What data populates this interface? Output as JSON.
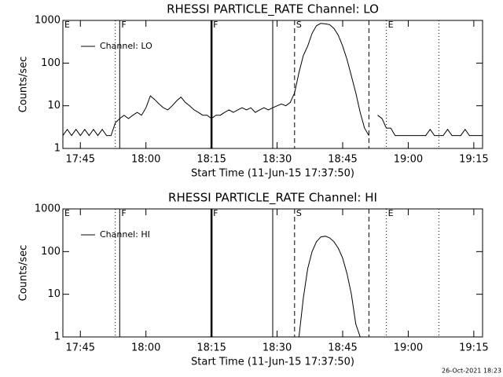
{
  "chart_data": [
    {
      "type": "line",
      "title": "RHESSI PARTICLE_RATE Channel: LO",
      "xlabel": "Start Time (11-Jun-15 17:37:50)",
      "ylabel": "Counts/sec",
      "x": [
        "17:41",
        "17:42",
        "17:43",
        "17:44",
        "17:45",
        "17:46",
        "17:47",
        "17:48",
        "17:49",
        "17:50",
        "17:51",
        "17:52",
        "17:53",
        "17:54",
        "17:55",
        "17:56",
        "17:57",
        "17:58",
        "17:59",
        "18:00",
        "18:01",
        "18:02",
        "18:03",
        "18:04",
        "18:05",
        "18:06",
        "18:07",
        "18:08",
        "18:09",
        "18:10",
        "18:11",
        "18:12",
        "18:13",
        "18:14",
        "18:15",
        "18:16",
        "18:17",
        "18:18",
        "18:19",
        "18:20",
        "18:21",
        "18:22",
        "18:23",
        "18:24",
        "18:25",
        "18:26",
        "18:27",
        "18:28",
        "18:29",
        "18:30",
        "18:31",
        "18:32",
        "18:33",
        "18:34",
        "18:35",
        "18:36",
        "18:37",
        "18:38",
        "18:39",
        "18:40",
        "18:41",
        "18:42",
        "18:43",
        "18:44",
        "18:45",
        "18:46",
        "18:47",
        "18:48",
        "18:49",
        "18:50",
        "18:51",
        "18:52",
        "18:53",
        "18:54",
        "18:55",
        "18:56",
        "18:57",
        "18:58",
        "18:59",
        "19:00",
        "19:01",
        "19:02",
        "19:03",
        "19:04",
        "19:05",
        "19:06",
        "19:07",
        "19:08",
        "19:09",
        "19:10",
        "19:11",
        "19:12",
        "19:13",
        "19:14",
        "19:15",
        "19:16",
        "19:17"
      ],
      "series": [
        {
          "name": "Channel: LO",
          "color": "#000000",
          "values": [
            2,
            2.8,
            2,
            2.8,
            2,
            2.8,
            2,
            2.8,
            2,
            2.8,
            2,
            2,
            4,
            5,
            6,
            5,
            6,
            7,
            6,
            9,
            17,
            14,
            11,
            9,
            8,
            10,
            13,
            16,
            12,
            10,
            8,
            7,
            6,
            6,
            5,
            6,
            6,
            7,
            8,
            7,
            8,
            9,
            8,
            9,
            7,
            8,
            9,
            8,
            9,
            10,
            11,
            10,
            12,
            20,
            60,
            150,
            250,
            500,
            750,
            850,
            830,
            800,
            650,
            450,
            250,
            120,
            50,
            20,
            7,
            3,
            2,
            null,
            6,
            5,
            3,
            3,
            2,
            2,
            2,
            2,
            2,
            2,
            2,
            2,
            2.8,
            2,
            2,
            2,
            2.8,
            2,
            2,
            2,
            2.8,
            2,
            2,
            2,
            2
          ]
        }
      ],
      "xlim": [
        "17:41",
        "19:17"
      ],
      "xticks": [
        "17:45",
        "18:00",
        "18:15",
        "18:30",
        "18:45",
        "19:00",
        "19:15"
      ],
      "ylim": [
        1,
        1000
      ],
      "yticks": [
        1,
        10,
        100,
        1000
      ],
      "log_y": true,
      "legend": "upper left",
      "markers": [
        {
          "x": "17:41",
          "style": "solid",
          "label": "E"
        },
        {
          "x": "17:53",
          "style": "dotted"
        },
        {
          "x": "17:54",
          "style": "solid",
          "label": "F"
        },
        {
          "x": "18:15",
          "style": "bold",
          "label": "F"
        },
        {
          "x": "18:29",
          "style": "solid"
        },
        {
          "x": "18:34",
          "style": "dashed",
          "label": "S"
        },
        {
          "x": "18:51",
          "style": "dashed"
        },
        {
          "x": "18:55",
          "style": "dotted",
          "label": "E"
        },
        {
          "x": "19:07",
          "style": "dotted"
        }
      ]
    },
    {
      "type": "line",
      "title": "RHESSI PARTICLE_RATE Channel: HI",
      "xlabel": "Start Time (11-Jun-15 17:37:50)",
      "ylabel": "Counts/sec",
      "x": [
        "18:35",
        "18:36",
        "18:37",
        "18:38",
        "18:39",
        "18:40",
        "18:41",
        "18:42",
        "18:43",
        "18:44",
        "18:45",
        "18:46",
        "18:47",
        "18:48",
        "18:49"
      ],
      "series": [
        {
          "name": "Channel: HI",
          "color": "#000000",
          "values": [
            1,
            8,
            40,
            100,
            170,
            220,
            230,
            210,
            170,
            120,
            70,
            30,
            10,
            2,
            1
          ]
        }
      ],
      "xlim": [
        "17:41",
        "19:17"
      ],
      "xticks": [
        "17:45",
        "18:00",
        "18:15",
        "18:30",
        "18:45",
        "19:00",
        "19:15"
      ],
      "ylim": [
        1,
        1000
      ],
      "yticks": [
        1,
        10,
        100,
        1000
      ],
      "log_y": true,
      "legend": "upper left",
      "markers": [
        {
          "x": "17:41",
          "style": "solid",
          "label": "E"
        },
        {
          "x": "17:53",
          "style": "dotted"
        },
        {
          "x": "17:54",
          "style": "solid",
          "label": "F"
        },
        {
          "x": "18:15",
          "style": "bold",
          "label": "F"
        },
        {
          "x": "18:29",
          "style": "solid"
        },
        {
          "x": "18:34",
          "style": "dashed",
          "label": "S"
        },
        {
          "x": "18:51",
          "style": "dashed"
        },
        {
          "x": "18:55",
          "style": "dotted",
          "label": "E"
        },
        {
          "x": "19:07",
          "style": "dotted"
        }
      ]
    }
  ],
  "footer": "26-Oct-2021 18:23"
}
